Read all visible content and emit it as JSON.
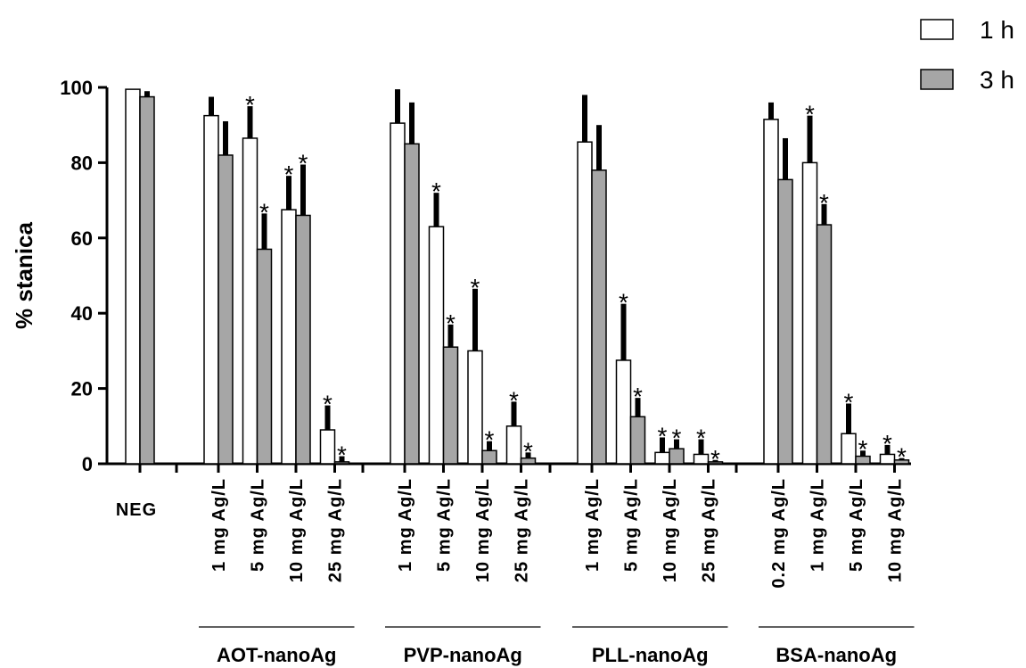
{
  "chart_data": {
    "type": "bar",
    "ylabel": "% stanica",
    "xlabel": "",
    "ylim": [
      0,
      100
    ],
    "yticks": [
      0,
      20,
      40,
      60,
      80,
      100
    ],
    "legend": {
      "placement": "top-right",
      "entries": [
        {
          "label": "1 h",
          "color": "#ffffff"
        },
        {
          "label": "3 h",
          "color": "#a6a6a6"
        }
      ]
    },
    "series_colors": {
      "1h": "#ffffff",
      "3h": "#a6a6a6"
    },
    "groups": [
      {
        "name": "",
        "categories": [
          {
            "label": "NEG",
            "values": [
              99.5,
              97.5
            ],
            "errors": [
              0,
              1.5
            ],
            "stars": [
              "",
              ""
            ]
          }
        ]
      },
      {
        "name": "AOT-nanoAg",
        "categories": [
          {
            "label": "1 mg Ag/L",
            "values": [
              92.5,
              82
            ],
            "errors": [
              5,
              9
            ],
            "stars": [
              "",
              ""
            ]
          },
          {
            "label": "5 mg Ag/L",
            "values": [
              86.5,
              57
            ],
            "errors": [
              8.5,
              9.5
            ],
            "stars": [
              "*",
              "*"
            ]
          },
          {
            "label": "10 mg Ag/L",
            "values": [
              67.5,
              66
            ],
            "errors": [
              9,
              13.5
            ],
            "stars": [
              "*",
              "*"
            ]
          },
          {
            "label": "25 mg Ag/L",
            "values": [
              9,
              0.5
            ],
            "errors": [
              6.5,
              1.5
            ],
            "stars": [
              "*",
              "*"
            ]
          }
        ]
      },
      {
        "name": "PVP-nanoAg",
        "categories": [
          {
            "label": "1 mg Ag/L",
            "values": [
              90.5,
              85
            ],
            "errors": [
              9,
              11
            ],
            "stars": [
              "",
              ""
            ]
          },
          {
            "label": "5 mg Ag/L",
            "values": [
              63,
              31
            ],
            "errors": [
              9,
              6
            ],
            "stars": [
              "*",
              "*"
            ]
          },
          {
            "label": "10 mg Ag/L",
            "values": [
              30,
              3.5
            ],
            "errors": [
              16.5,
              2.5
            ],
            "stars": [
              "*",
              "*"
            ]
          },
          {
            "label": "25 mg Ag/L",
            "values": [
              10,
              1.5
            ],
            "errors": [
              6.5,
              1.5
            ],
            "stars": [
              "*",
              "*"
            ]
          }
        ]
      },
      {
        "name": "PLL-nanoAg",
        "categories": [
          {
            "label": "1 mg Ag/L",
            "values": [
              85.5,
              78
            ],
            "errors": [
              12.5,
              12
            ],
            "stars": [
              "",
              ""
            ]
          },
          {
            "label": "5 mg Ag/L",
            "values": [
              27.5,
              12.5
            ],
            "errors": [
              15,
              5
            ],
            "stars": [
              "*",
              "*"
            ]
          },
          {
            "label": "10 mg Ag/L",
            "values": [
              3,
              4
            ],
            "errors": [
              4,
              2.5
            ],
            "stars": [
              "*",
              "*"
            ]
          },
          {
            "label": "25 mg Ag/L",
            "values": [
              2.5,
              0.5
            ],
            "errors": [
              4,
              0.5
            ],
            "stars": [
              "*",
              "*"
            ]
          }
        ]
      },
      {
        "name": "BSA-nanoAg",
        "categories": [
          {
            "label": "0.2 mg Ag/L",
            "values": [
              91.5,
              75.5
            ],
            "errors": [
              4.5,
              11
            ],
            "stars": [
              "",
              ""
            ]
          },
          {
            "label": "1 mg Ag/L",
            "values": [
              80,
              63.5
            ],
            "errors": [
              12.5,
              5.5
            ],
            "stars": [
              "*",
              "*"
            ]
          },
          {
            "label": "5 mg Ag/L",
            "values": [
              8,
              2
            ],
            "errors": [
              8,
              1.5
            ],
            "stars": [
              "*",
              "*"
            ]
          },
          {
            "label": "10 mg Ag/L",
            "values": [
              2.5,
              1
            ],
            "errors": [
              2.5,
              0.5
            ],
            "stars": [
              "*",
              "*"
            ]
          }
        ]
      }
    ]
  }
}
